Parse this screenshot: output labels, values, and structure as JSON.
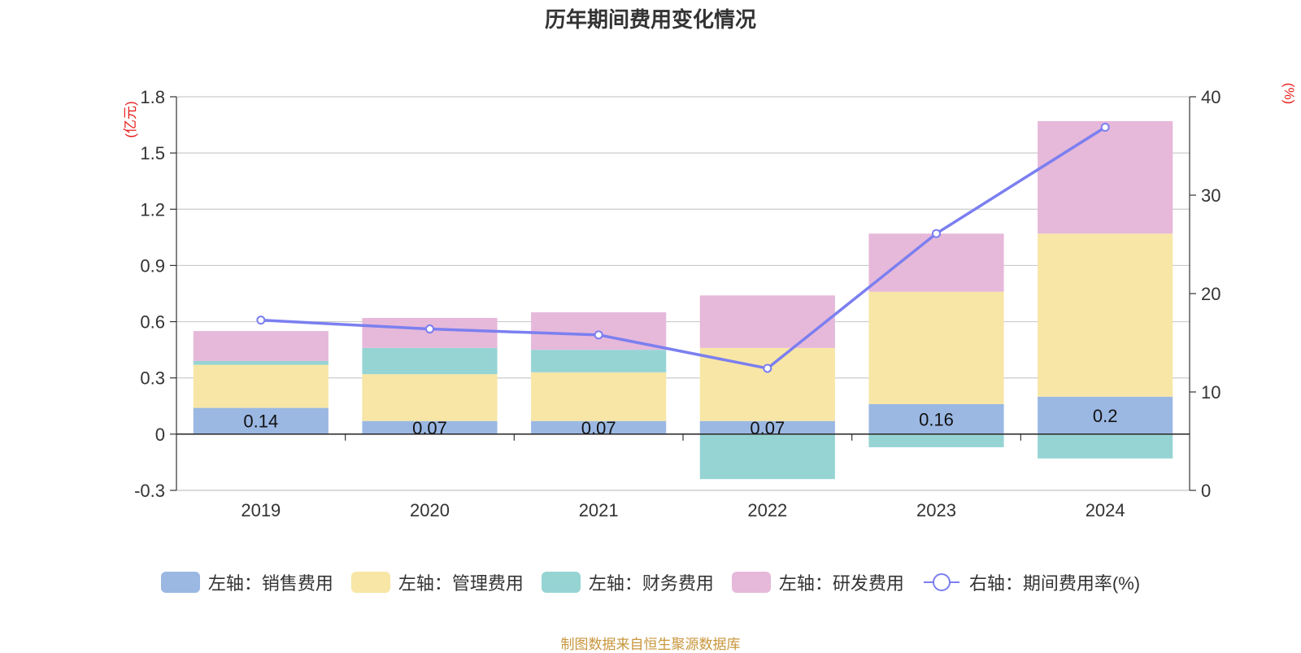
{
  "chart_data": {
    "type": "bar",
    "title": "历年期间费用变化情况",
    "categories": [
      "2019",
      "2020",
      "2021",
      "2022",
      "2023",
      "2024"
    ],
    "series": [
      {
        "name": "左轴：销售费用",
        "type": "bar",
        "axis": "left",
        "color": "#9bb8e3",
        "values": [
          0.14,
          0.07,
          0.07,
          0.07,
          0.16,
          0.2
        ],
        "labels": [
          "0.14",
          "0.07",
          "0.07",
          "0.07",
          "0.16",
          "0.2"
        ]
      },
      {
        "name": "左轴：管理费用",
        "type": "bar",
        "axis": "left",
        "color": "#f7e6a6",
        "values": [
          0.23,
          0.25,
          0.26,
          0.39,
          0.6,
          0.87
        ]
      },
      {
        "name": "左轴：财务费用",
        "type": "bar",
        "axis": "left",
        "color": "#96d4d4",
        "values": [
          0.02,
          0.14,
          0.12,
          -0.24,
          -0.07,
          -0.13
        ]
      },
      {
        "name": "左轴：研发费用",
        "type": "bar",
        "axis": "left",
        "color": "#e6b8da",
        "values": [
          0.16,
          0.16,
          0.2,
          0.28,
          0.31,
          0.6
        ]
      },
      {
        "name": "右轴：期间费用率(%)",
        "type": "line",
        "axis": "right",
        "color": "#7b7ff0",
        "values": [
          17.3,
          16.4,
          15.8,
          12.4,
          26.1,
          36.9
        ]
      }
    ],
    "left_axis": {
      "unit": "(亿元)",
      "ylim": [
        -0.3,
        1.8
      ],
      "ticks": [
        -0.3,
        0,
        0.3,
        0.6,
        0.9,
        1.2,
        1.5,
        1.8
      ],
      "tick_labels": [
        "-0.3",
        "0",
        "0.3",
        "0.6",
        "0.9",
        "1.2",
        "1.5",
        "1.8"
      ]
    },
    "right_axis": {
      "unit": "(%)",
      "ylim": [
        0,
        40
      ],
      "ticks": [
        0,
        10,
        20,
        30,
        40
      ],
      "tick_labels": [
        "0",
        "10",
        "20",
        "30",
        "40"
      ]
    },
    "grid": true,
    "legend_position": "bottom"
  },
  "footer": "制图数据来自恒生聚源数据库"
}
